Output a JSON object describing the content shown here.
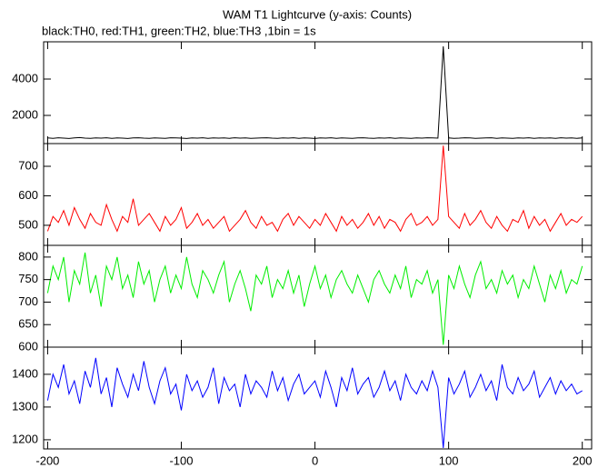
{
  "chart_data": {
    "type": "line",
    "title": "WAM T1 Lightcurve (y-axis: Counts)",
    "subtitle": "black:TH0, red:TH1, green:TH2, blue:TH3 ,1bin = 1s",
    "x": [
      -200,
      -196,
      -192,
      -188,
      -184,
      -180,
      -176,
      -172,
      -168,
      -164,
      -160,
      -156,
      -152,
      -148,
      -144,
      -140,
      -136,
      -132,
      -128,
      -124,
      -120,
      -116,
      -112,
      -108,
      -104,
      -100,
      -96,
      -92,
      -88,
      -84,
      -80,
      -76,
      -72,
      -68,
      -64,
      -60,
      -56,
      -52,
      -48,
      -44,
      -40,
      -36,
      -32,
      -28,
      -24,
      -20,
      -16,
      -12,
      -8,
      -4,
      0,
      4,
      8,
      12,
      16,
      20,
      24,
      28,
      32,
      36,
      40,
      44,
      48,
      52,
      56,
      60,
      64,
      68,
      72,
      76,
      80,
      84,
      88,
      92,
      96,
      100,
      104,
      108,
      112,
      116,
      120,
      124,
      128,
      132,
      136,
      140,
      144,
      148,
      152,
      156,
      160,
      164,
      168,
      172,
      176,
      180,
      184,
      188,
      192,
      196,
      200
    ],
    "xlim": [
      -203,
      207
    ],
    "xticks": [
      -200,
      -100,
      0,
      100,
      200
    ],
    "panels": [
      {
        "ylim": [
          450,
          6050
        ],
        "yticks": [
          2000,
          4000
        ],
        "series": [
          {
            "color": "#000000",
            "values": [
              760,
              740,
              770,
              750,
              730,
              760,
              780,
              750,
              740,
              760,
              750,
              770,
              740,
              760,
              750,
              730,
              760,
              770,
              750,
              740,
              760,
              750,
              740,
              770,
              760,
              750,
              730,
              760,
              750,
              770,
              740,
              760,
              750,
              760,
              740,
              770,
              750,
              760,
              740,
              750,
              760,
              770,
              750,
              740,
              760,
              750,
              770,
              740,
              760,
              750,
              730,
              760,
              750,
              770,
              740,
              760,
              750,
              740,
              760,
              770,
              750,
              740,
              760,
              750,
              770,
              740,
              760,
              750,
              740,
              760,
              750,
              770,
              760,
              750,
              5800,
              760,
              740,
              750,
              770,
              760,
              740,
              750,
              760,
              770,
              740,
              760,
              750,
              740,
              760,
              750,
              770,
              740,
              760,
              750,
              760,
              740,
              770,
              750,
              760,
              740,
              760
            ]
          }
        ]
      },
      {
        "ylim": [
          432,
          777
        ],
        "yticks": [
          500,
          600,
          700
        ],
        "series": [
          {
            "color": "#ff0000",
            "values": [
              480,
              530,
              510,
              550,
              500,
              560,
              520,
              490,
              540,
              510,
              500,
              570,
              520,
              480,
              530,
              510,
              590,
              500,
              520,
              540,
              510,
              480,
              530,
              500,
              520,
              560,
              490,
              510,
              540,
              500,
              520,
              490,
              510,
              530,
              480,
              500,
              520,
              550,
              510,
              490,
              530,
              500,
              510,
              480,
              520,
              540,
              500,
              530,
              510,
              490,
              520,
              500,
              540,
              510,
              480,
              530,
              500,
              520,
              490,
              510,
              540,
              500,
              530,
              490,
              520,
              510,
              480,
              520,
              540,
              500,
              510,
              530,
              500,
              520,
              770,
              530,
              510,
              490,
              540,
              500,
              520,
              550,
              510,
              490,
              530,
              500,
              480,
              520,
              510,
              550,
              490,
              530,
              500,
              520,
              480,
              510,
              540,
              500,
              520,
              510,
              530
            ]
          }
        ]
      },
      {
        "ylim": [
          600,
          826
        ],
        "yticks": [
          600,
          650,
          700,
          750,
          800
        ],
        "series": [
          {
            "color": "#00ee00",
            "values": [
              720,
              780,
              750,
              800,
              700,
              770,
              740,
              810,
              720,
              760,
              690,
              780,
              750,
              800,
              730,
              760,
              710,
              790,
              740,
              770,
              700,
              750,
              780,
              720,
              760,
              730,
              800,
              740,
              710,
              770,
              750,
              720,
              760,
              790,
              700,
              740,
              770,
              730,
              680,
              760,
              740,
              780,
              710,
              750,
              730,
              770,
              720,
              760,
              690,
              740,
              780,
              730,
              760,
              710,
              750,
              770,
              740,
              720,
              760,
              730,
              700,
              750,
              770,
              740,
              720,
              760,
              730,
              780,
              710,
              750,
              740,
              770,
              720,
              750,
              605,
              760,
              730,
              780,
              740,
              710,
              760,
              790,
              730,
              750,
              720,
              770,
              740,
              760,
              710,
              750,
              730,
              780,
              740,
              700,
              760,
              730,
              770,
              720,
              750,
              740,
              780
            ]
          }
        ]
      },
      {
        "ylim": [
          1172,
          1483
        ],
        "yticks": [
          1200,
          1300,
          1400
        ],
        "series": [
          {
            "color": "#0000ff",
            "values": [
              1320,
              1400,
              1360,
              1430,
              1340,
              1380,
              1310,
              1410,
              1360,
              1450,
              1340,
              1390,
              1300,
              1420,
              1370,
              1330,
              1400,
              1350,
              1440,
              1360,
              1310,
              1380,
              1420,
              1340,
              1370,
              1290,
              1400,
              1350,
              1380,
              1330,
              1360,
              1420,
              1310,
              1390,
              1350,
              1370,
              1300,
              1400,
              1340,
              1380,
              1360,
              1330,
              1410,
              1350,
              1390,
              1320,
              1370,
              1400,
              1340,
              1360,
              1380,
              1330,
              1410,
              1360,
              1300,
              1390,
              1350,
              1420,
              1340,
              1370,
              1390,
              1330,
              1360,
              1410,
              1350,
              1380,
              1320,
              1400,
              1360,
              1340,
              1380,
              1350,
              1410,
              1360,
              1175,
              1390,
              1340,
              1370,
              1410,
              1330,
              1360,
              1400,
              1350,
              1380,
              1320,
              1430,
              1360,
              1340,
              1390,
              1350,
              1370,
              1410,
              1330,
              1360,
              1390,
              1340,
              1380,
              1350,
              1370,
              1340,
              1350
            ]
          }
        ]
      }
    ]
  }
}
